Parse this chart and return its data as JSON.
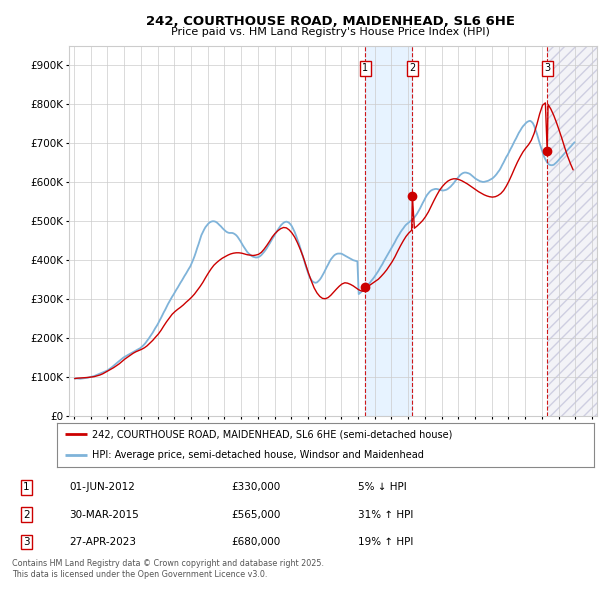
{
  "title": "242, COURTHOUSE ROAD, MAIDENHEAD, SL6 6HE",
  "subtitle": "Price paid vs. HM Land Registry's House Price Index (HPI)",
  "ylim": [
    0,
    950000
  ],
  "yticks": [
    0,
    100000,
    200000,
    300000,
    400000,
    500000,
    600000,
    700000,
    800000,
    900000
  ],
  "ytick_labels": [
    "£0",
    "£100K",
    "£200K",
    "£300K",
    "£400K",
    "£500K",
    "£600K",
    "£700K",
    "£800K",
    "£900K"
  ],
  "xlim_start": 1994.7,
  "xlim_end": 2026.3,
  "bg_color": "#ffffff",
  "grid_color": "#cccccc",
  "hpi_color": "#7fb3d9",
  "price_color": "#cc0000",
  "span_color": "#ddeeff",
  "hatch_color": "#dddddd",
  "sales": [
    {
      "num": 1,
      "date_decimal": 2012.42,
      "price": 330000,
      "label": "01-JUN-2012",
      "pct": "5% ↓ HPI"
    },
    {
      "num": 2,
      "date_decimal": 2015.25,
      "price": 565000,
      "label": "30-MAR-2015",
      "pct": "31% ↑ HPI"
    },
    {
      "num": 3,
      "date_decimal": 2023.32,
      "price": 680000,
      "label": "27-APR-2023",
      "pct": "19% ↑ HPI"
    }
  ],
  "legend_line1": "242, COURTHOUSE ROAD, MAIDENHEAD, SL6 6HE (semi-detached house)",
  "legend_line2": "HPI: Average price, semi-detached house, Windsor and Maidenhead",
  "footnote": "Contains HM Land Registry data © Crown copyright and database right 2025.\nThis data is licensed under the Open Government Licence v3.0.",
  "hpi_data_years": [
    1995.04,
    1995.12,
    1995.21,
    1995.29,
    1995.37,
    1995.46,
    1995.54,
    1995.62,
    1995.71,
    1995.79,
    1995.87,
    1995.96,
    1996.04,
    1996.12,
    1996.21,
    1996.29,
    1996.37,
    1996.46,
    1996.54,
    1996.62,
    1996.71,
    1996.79,
    1996.87,
    1996.96,
    1997.04,
    1997.12,
    1997.21,
    1997.29,
    1997.37,
    1997.46,
    1997.54,
    1997.62,
    1997.71,
    1997.79,
    1997.87,
    1997.96,
    1998.04,
    1998.12,
    1998.21,
    1998.29,
    1998.37,
    1998.46,
    1998.54,
    1998.62,
    1998.71,
    1998.79,
    1998.87,
    1998.96,
    1999.04,
    1999.12,
    1999.21,
    1999.29,
    1999.37,
    1999.46,
    1999.54,
    1999.62,
    1999.71,
    1999.79,
    1999.87,
    1999.96,
    2000.04,
    2000.12,
    2000.21,
    2000.29,
    2000.37,
    2000.46,
    2000.54,
    2000.62,
    2000.71,
    2000.79,
    2000.87,
    2000.96,
    2001.04,
    2001.12,
    2001.21,
    2001.29,
    2001.37,
    2001.46,
    2001.54,
    2001.62,
    2001.71,
    2001.79,
    2001.87,
    2001.96,
    2002.04,
    2002.12,
    2002.21,
    2002.29,
    2002.37,
    2002.46,
    2002.54,
    2002.62,
    2002.71,
    2002.79,
    2002.87,
    2002.96,
    2003.04,
    2003.12,
    2003.21,
    2003.29,
    2003.37,
    2003.46,
    2003.54,
    2003.62,
    2003.71,
    2003.79,
    2003.87,
    2003.96,
    2004.04,
    2004.12,
    2004.21,
    2004.29,
    2004.37,
    2004.46,
    2004.54,
    2004.62,
    2004.71,
    2004.79,
    2004.87,
    2004.96,
    2005.04,
    2005.12,
    2005.21,
    2005.29,
    2005.37,
    2005.46,
    2005.54,
    2005.62,
    2005.71,
    2005.79,
    2005.87,
    2005.96,
    2006.04,
    2006.12,
    2006.21,
    2006.29,
    2006.37,
    2006.46,
    2006.54,
    2006.62,
    2006.71,
    2006.79,
    2006.87,
    2006.96,
    2007.04,
    2007.12,
    2007.21,
    2007.29,
    2007.37,
    2007.46,
    2007.54,
    2007.62,
    2007.71,
    2007.79,
    2007.87,
    2007.96,
    2008.04,
    2008.12,
    2008.21,
    2008.29,
    2008.37,
    2008.46,
    2008.54,
    2008.62,
    2008.71,
    2008.79,
    2008.87,
    2008.96,
    2009.04,
    2009.12,
    2009.21,
    2009.29,
    2009.37,
    2009.46,
    2009.54,
    2009.62,
    2009.71,
    2009.79,
    2009.87,
    2009.96,
    2010.04,
    2010.12,
    2010.21,
    2010.29,
    2010.37,
    2010.46,
    2010.54,
    2010.62,
    2010.71,
    2010.79,
    2010.87,
    2010.96,
    2011.04,
    2011.12,
    2011.21,
    2011.29,
    2011.37,
    2011.46,
    2011.54,
    2011.62,
    2011.71,
    2011.79,
    2011.87,
    2011.96,
    2012.04,
    2012.12,
    2012.21,
    2012.29,
    2012.37,
    2012.46,
    2012.54,
    2012.62,
    2012.71,
    2012.79,
    2012.87,
    2012.96,
    2013.04,
    2013.12,
    2013.21,
    2013.29,
    2013.37,
    2013.46,
    2013.54,
    2013.62,
    2013.71,
    2013.79,
    2013.87,
    2013.96,
    2014.04,
    2014.12,
    2014.21,
    2014.29,
    2014.37,
    2014.46,
    2014.54,
    2014.62,
    2014.71,
    2014.79,
    2014.87,
    2014.96,
    2015.04,
    2015.12,
    2015.21,
    2015.29,
    2015.37,
    2015.46,
    2015.54,
    2015.62,
    2015.71,
    2015.79,
    2015.87,
    2015.96,
    2016.04,
    2016.12,
    2016.21,
    2016.29,
    2016.37,
    2016.46,
    2016.54,
    2016.62,
    2016.71,
    2016.79,
    2016.87,
    2016.96,
    2017.04,
    2017.12,
    2017.21,
    2017.29,
    2017.37,
    2017.46,
    2017.54,
    2017.62,
    2017.71,
    2017.79,
    2017.87,
    2017.96,
    2018.04,
    2018.12,
    2018.21,
    2018.29,
    2018.37,
    2018.46,
    2018.54,
    2018.62,
    2018.71,
    2018.79,
    2018.87,
    2018.96,
    2019.04,
    2019.12,
    2019.21,
    2019.29,
    2019.37,
    2019.46,
    2019.54,
    2019.62,
    2019.71,
    2019.79,
    2019.87,
    2019.96,
    2020.04,
    2020.12,
    2020.21,
    2020.29,
    2020.37,
    2020.46,
    2020.54,
    2020.62,
    2020.71,
    2020.79,
    2020.87,
    2020.96,
    2021.04,
    2021.12,
    2021.21,
    2021.29,
    2021.37,
    2021.46,
    2021.54,
    2021.62,
    2021.71,
    2021.79,
    2021.87,
    2021.96,
    2022.04,
    2022.12,
    2022.21,
    2022.29,
    2022.37,
    2022.46,
    2022.54,
    2022.62,
    2022.71,
    2022.79,
    2022.87,
    2022.96,
    2023.04,
    2023.12,
    2023.21,
    2023.29,
    2023.37,
    2023.46,
    2023.54,
    2023.62,
    2023.71,
    2023.79,
    2023.87,
    2023.96,
    2024.04,
    2024.12,
    2024.21,
    2024.29,
    2024.37,
    2024.46,
    2024.54,
    2024.62,
    2024.71,
    2024.79,
    2024.87,
    2024.96
  ],
  "hpi_data_values": [
    96000,
    96500,
    96200,
    95800,
    95500,
    96000,
    96500,
    97000,
    97500,
    98000,
    98800,
    99500,
    100500,
    101500,
    102500,
    104000,
    105500,
    107000,
    108500,
    110000,
    111500,
    113000,
    114500,
    116000,
    118000,
    120500,
    123000,
    126000,
    129000,
    132000,
    135000,
    138000,
    141000,
    144000,
    147000,
    150000,
    152000,
    154000,
    156000,
    158000,
    160000,
    162000,
    164000,
    166000,
    168000,
    170000,
    172000,
    174000,
    177000,
    180000,
    184000,
    188000,
    193000,
    198000,
    203000,
    208000,
    214000,
    220000,
    226000,
    232000,
    238000,
    245000,
    252000,
    259000,
    266000,
    273000,
    280000,
    287000,
    294000,
    300000,
    306000,
    312000,
    318000,
    324000,
    330000,
    336000,
    342000,
    348000,
    354000,
    360000,
    366000,
    372000,
    378000,
    384000,
    392000,
    400000,
    410000,
    420000,
    431000,
    442000,
    453000,
    464000,
    472000,
    479000,
    485000,
    490000,
    494000,
    497000,
    499000,
    500000,
    500000,
    499000,
    497000,
    494000,
    490000,
    487000,
    483000,
    479000,
    476000,
    473000,
    471000,
    470000,
    470000,
    470000,
    469000,
    467000,
    464000,
    460000,
    455000,
    449000,
    443000,
    437000,
    431000,
    426000,
    421000,
    417000,
    414000,
    411000,
    409000,
    408000,
    407000,
    407000,
    408000,
    410000,
    413000,
    417000,
    421000,
    426000,
    431000,
    437000,
    443000,
    449000,
    455000,
    461000,
    467000,
    473000,
    479000,
    484000,
    489000,
    493000,
    496000,
    498000,
    499000,
    498000,
    496000,
    492000,
    487000,
    480000,
    472000,
    463000,
    453000,
    443000,
    432000,
    421000,
    409000,
    397000,
    385000,
    373000,
    363000,
    355000,
    349000,
    345000,
    343000,
    342000,
    343000,
    346000,
    350000,
    355000,
    361000,
    368000,
    375000,
    382000,
    389000,
    396000,
    402000,
    407000,
    411000,
    414000,
    416000,
    417000,
    417000,
    417000,
    416000,
    414000,
    412000,
    410000,
    408000,
    406000,
    404000,
    402000,
    400000,
    399000,
    398000,
    397000,
    313000,
    316000,
    319000,
    322000,
    326000,
    330000,
    334000,
    338000,
    342000,
    347000,
    351000,
    356000,
    361000,
    366000,
    372000,
    378000,
    384000,
    390000,
    397000,
    403000,
    410000,
    416000,
    422000,
    428000,
    435000,
    441000,
    447000,
    454000,
    460000,
    466000,
    472000,
    477000,
    482000,
    487000,
    491000,
    494000,
    497000,
    500000,
    503000,
    506000,
    510000,
    515000,
    520000,
    526000,
    533000,
    540000,
    547000,
    554000,
    561000,
    567000,
    572000,
    576000,
    579000,
    581000,
    582000,
    583000,
    583000,
    582000,
    581000,
    580000,
    579000,
    579000,
    580000,
    581000,
    583000,
    586000,
    589000,
    593000,
    597000,
    602000,
    606000,
    611000,
    615000,
    619000,
    622000,
    624000,
    625000,
    625000,
    624000,
    623000,
    621000,
    618000,
    615000,
    612000,
    609000,
    607000,
    605000,
    603000,
    602000,
    601000,
    601000,
    602000,
    603000,
    604000,
    606000,
    608000,
    610000,
    613000,
    617000,
    621000,
    626000,
    631000,
    637000,
    644000,
    651000,
    658000,
    665000,
    671000,
    678000,
    685000,
    692000,
    699000,
    706000,
    713000,
    720000,
    727000,
    733000,
    739000,
    744000,
    748000,
    752000,
    755000,
    757000,
    758000,
    756000,
    752000,
    745000,
    735000,
    724000,
    712000,
    700000,
    688000,
    677000,
    667000,
    659000,
    653000,
    648000,
    645000,
    644000,
    644000,
    645000,
    648000,
    651000,
    655000,
    659000,
    663000,
    667000,
    671000,
    675000,
    679000,
    683000,
    687000,
    691000,
    695000,
    699000,
    703000
  ],
  "price_data_years": [
    1995.04,
    1995.21,
    1995.37,
    1995.54,
    1995.71,
    1995.87,
    1996.04,
    1996.21,
    1996.37,
    1996.54,
    1996.71,
    1996.87,
    1997.04,
    1997.21,
    1997.37,
    1997.54,
    1997.71,
    1997.87,
    1998.04,
    1998.21,
    1998.37,
    1998.54,
    1998.71,
    1998.87,
    1999.04,
    1999.21,
    1999.37,
    1999.54,
    1999.71,
    1999.87,
    2000.04,
    2000.21,
    2000.37,
    2000.54,
    2000.71,
    2000.87,
    2001.04,
    2001.21,
    2001.37,
    2001.54,
    2001.71,
    2001.87,
    2002.04,
    2002.21,
    2002.37,
    2002.54,
    2002.71,
    2002.87,
    2003.04,
    2003.21,
    2003.37,
    2003.54,
    2003.71,
    2003.87,
    2004.04,
    2004.21,
    2004.37,
    2004.54,
    2004.71,
    2004.87,
    2005.04,
    2005.21,
    2005.37,
    2005.54,
    2005.71,
    2005.87,
    2006.04,
    2006.21,
    2006.37,
    2006.54,
    2006.71,
    2006.87,
    2007.04,
    2007.21,
    2007.37,
    2007.54,
    2007.71,
    2007.87,
    2008.04,
    2008.21,
    2008.37,
    2008.54,
    2008.71,
    2008.87,
    2009.04,
    2009.21,
    2009.37,
    2009.54,
    2009.71,
    2009.87,
    2010.04,
    2010.21,
    2010.37,
    2010.54,
    2010.71,
    2010.87,
    2011.04,
    2011.21,
    2011.37,
    2011.54,
    2011.71,
    2011.87,
    2012.04,
    2012.21,
    2012.37,
    2012.42,
    2012.54,
    2012.71,
    2012.87,
    2013.04,
    2013.21,
    2013.37,
    2013.54,
    2013.71,
    2013.87,
    2014.04,
    2014.21,
    2014.37,
    2014.54,
    2014.71,
    2014.87,
    2015.04,
    2015.21,
    2015.25,
    2015.37,
    2015.54,
    2015.71,
    2015.87,
    2016.04,
    2016.21,
    2016.37,
    2016.54,
    2016.71,
    2016.87,
    2017.04,
    2017.21,
    2017.37,
    2017.54,
    2017.71,
    2017.87,
    2018.04,
    2018.21,
    2018.37,
    2018.54,
    2018.71,
    2018.87,
    2019.04,
    2019.21,
    2019.37,
    2019.54,
    2019.71,
    2019.87,
    2020.04,
    2020.21,
    2020.37,
    2020.54,
    2020.71,
    2020.87,
    2021.04,
    2021.21,
    2021.37,
    2021.54,
    2021.71,
    2021.87,
    2022.04,
    2022.21,
    2022.37,
    2022.54,
    2022.71,
    2022.87,
    2023.04,
    2023.21,
    2023.32,
    2023.37,
    2023.54,
    2023.71,
    2023.87,
    2024.04,
    2024.21,
    2024.37,
    2024.54,
    2024.71,
    2024.87
  ],
  "price_data_values": [
    96000,
    97000,
    97500,
    98000,
    98500,
    99000,
    100000,
    101000,
    103000,
    105000,
    108000,
    112000,
    116000,
    120000,
    124000,
    129000,
    134000,
    140000,
    146000,
    151000,
    156000,
    161000,
    165000,
    168000,
    171000,
    175000,
    180000,
    187000,
    194000,
    202000,
    210000,
    220000,
    231000,
    242000,
    252000,
    261000,
    268000,
    274000,
    279000,
    285000,
    292000,
    298000,
    305000,
    313000,
    322000,
    332000,
    343000,
    355000,
    367000,
    378000,
    387000,
    394000,
    400000,
    405000,
    409000,
    413000,
    416000,
    418000,
    419000,
    419000,
    418000,
    416000,
    414000,
    413000,
    412000,
    413000,
    415000,
    420000,
    428000,
    438000,
    449000,
    460000,
    469000,
    476000,
    481000,
    484000,
    483000,
    478000,
    470000,
    459000,
    445000,
    428000,
    409000,
    388000,
    366000,
    346000,
    329000,
    316000,
    307000,
    302000,
    301000,
    304000,
    310000,
    318000,
    326000,
    333000,
    339000,
    342000,
    341000,
    338000,
    334000,
    329000,
    324000,
    321000,
    320000,
    330000,
    332000,
    336000,
    341000,
    346000,
    351000,
    358000,
    366000,
    375000,
    385000,
    396000,
    409000,
    423000,
    437000,
    450000,
    461000,
    470000,
    477000,
    565000,
    482000,
    488000,
    495000,
    502000,
    512000,
    524000,
    538000,
    553000,
    567000,
    579000,
    589000,
    597000,
    603000,
    607000,
    609000,
    609000,
    607000,
    604000,
    600000,
    596000,
    591000,
    586000,
    581000,
    576000,
    572000,
    568000,
    565000,
    563000,
    562000,
    563000,
    566000,
    571000,
    579000,
    590000,
    604000,
    620000,
    636000,
    652000,
    666000,
    678000,
    688000,
    697000,
    708000,
    726000,
    750000,
    776000,
    798000,
    804000,
    680000,
    800000,
    788000,
    772000,
    754000,
    733000,
    711000,
    689000,
    667000,
    648000,
    632000
  ]
}
